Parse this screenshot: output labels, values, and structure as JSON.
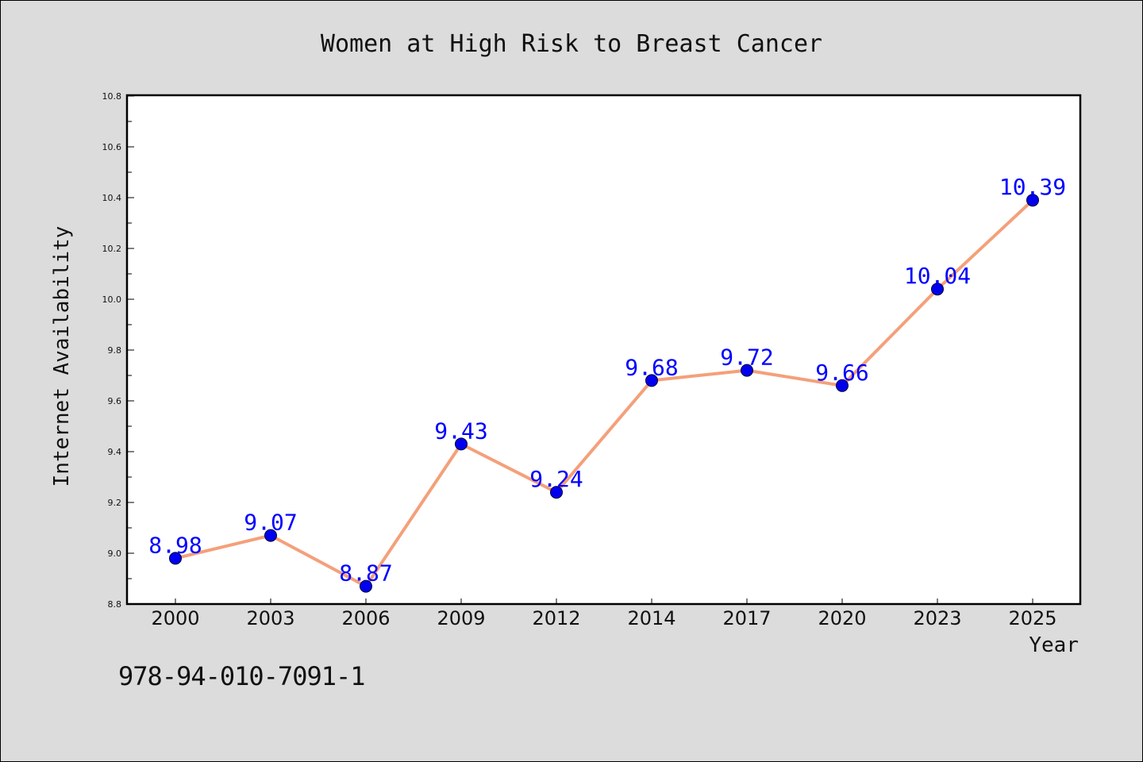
{
  "chart_data": {
    "type": "line",
    "title": "Women at High Risk to Breast Cancer",
    "xlabel": "Year",
    "ylabel": "Internet Availability",
    "categories": [
      "2000",
      "2003",
      "2006",
      "2009",
      "2012",
      "2014",
      "2017",
      "2020",
      "2023",
      "2025"
    ],
    "values": [
      8.98,
      9.07,
      8.87,
      9.43,
      9.24,
      9.68,
      9.72,
      9.66,
      10.04,
      10.39
    ],
    "value_labels": [
      "8.98",
      "9.07",
      "8.87",
      "9.43",
      "9.24",
      "9.68",
      "9.72",
      "9.66",
      "10.04",
      "10.39"
    ],
    "ylim": [
      8.8,
      10.8
    ],
    "yticks": [
      "8.8",
      "9.0",
      "9.2",
      "9.4",
      "9.6",
      "9.8",
      "10.0",
      "10.2",
      "10.4",
      "10.6",
      "10.8"
    ],
    "grid": false,
    "colors": {
      "line": "#f4a07a",
      "marker": "#0000ee",
      "label": "#0000ff",
      "background": "#dcdcdc",
      "plot_area": "#ffffff"
    }
  },
  "footer": {
    "isbn": "978-94-010-7091-1"
  }
}
